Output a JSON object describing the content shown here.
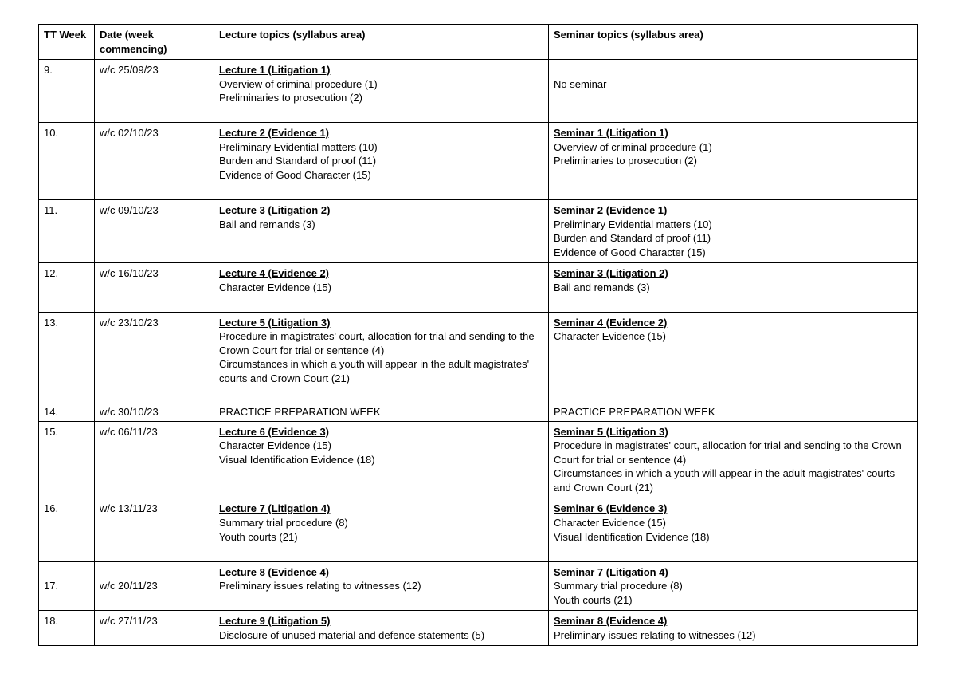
{
  "table": {
    "columns": [
      "TT Week",
      "Date (week commencing)",
      "Lecture topics (syllabus area)",
      "Seminar topics (syllabus area)"
    ],
    "rows": [
      {
        "week": "9.",
        "date": "w/c 25/09/23",
        "lecture_title": "Lecture 1 (Litigation 1)",
        "lecture_lines": [
          "Overview of criminal procedure (1)",
          "Preliminaries to prosecution (2)"
        ],
        "seminar_title": "",
        "seminar_lines": [
          "No seminar"
        ],
        "seminar_lead_blank": true,
        "tall": true
      },
      {
        "week": "10.",
        "date": "w/c 02/10/23",
        "lecture_title": "Lecture 2 (Evidence 1)",
        "lecture_lines": [
          "Preliminary Evidential matters (10)",
          "Burden and Standard of proof (11)",
          "Evidence of Good Character (15)"
        ],
        "seminar_title": "Seminar 1 (Litigation 1)",
        "seminar_lines": [
          "Overview of criminal procedure (1)",
          "Preliminaries to prosecution (2)"
        ],
        "tall": true
      },
      {
        "week": "11.",
        "date": "w/c 09/10/23",
        "lecture_title": "Lecture 3 (Litigation 2)",
        "lecture_lines": [
          "Bail and remands (3)"
        ],
        "seminar_title": "Seminar 2 (Evidence 1)",
        "seminar_lines": [
          "Preliminary Evidential matters (10)",
          "Burden and Standard of proof (11)",
          "Evidence of Good Character (15)"
        ],
        "tall": true
      },
      {
        "week": "12.",
        "date": "w/c 16/10/23",
        "lecture_title": "Lecture 4 (Evidence 2)",
        "lecture_lines": [
          "Character Evidence (15)"
        ],
        "seminar_title": "Seminar 3 (Litigation 2)",
        "seminar_lines": [
          "Bail and remands (3)"
        ],
        "tall": true
      },
      {
        "week": "13.",
        "date": "w/c  23/10/23",
        "lecture_title": "Lecture 5 (Litigation 3)",
        "lecture_lines": [
          "Procedure in magistrates' court, allocation for trial and sending to the Crown Court for trial or sentence (4)",
          "Circumstances in which a youth will appear in the adult magistrates' courts and Crown Court (21)"
        ],
        "seminar_title": "Seminar 4 (Evidence 2)",
        "seminar_lines": [
          "Character Evidence (15)"
        ],
        "tall": true
      },
      {
        "week": "14.",
        "date": "w/c 30/10/23",
        "lecture_title": "",
        "lecture_lines": [
          "PRACTICE PREPARATION WEEK"
        ],
        "seminar_title": "",
        "seminar_lines": [
          "PRACTICE PREPARATION WEEK"
        ],
        "short": true
      },
      {
        "week": "15.",
        "date": "w/c 06/11/23",
        "lecture_title": "Lecture 6 (Evidence 3)",
        "lecture_lines": [
          "Character Evidence (15)",
          "Visual Identification Evidence (18)"
        ],
        "seminar_title": "Seminar 5 (Litigation 3)",
        "seminar_lines": [
          "Procedure in magistrates' court, allocation for trial and sending to the Crown Court for trial or sentence (4)",
          "Circumstances in which a youth will appear in the adult magistrates' courts and Crown Court (21)"
        ],
        "tall": true
      },
      {
        "week": "16.",
        "date": "w/c  13/11/23",
        "lecture_title": "Lecture 7 (Litigation 4)",
        "lecture_lines": [
          "Summary trial procedure (8)",
          "Youth courts (21)"
        ],
        "seminar_title": "Seminar 6 (Evidence 3)",
        "seminar_lines": [
          "Character Evidence (15)",
          "Visual Identification Evidence (18)"
        ],
        "tall": true
      },
      {
        "week": "17.",
        "date": "w/c 20/11/23",
        "lecture_title": "Lecture 8 (Evidence 4)",
        "lecture_lines": [
          "Preliminary issues relating to witnesses (12)"
        ],
        "seminar_title": "Seminar 7 (Litigation 4)",
        "seminar_lines": [
          "Summary trial procedure (8)",
          "Youth courts (21)"
        ],
        "tall": true,
        "week_low": true
      },
      {
        "week": "18.",
        "date": "w/c 27/11/23",
        "lecture_title": "Lecture 9 (Litigation 5)",
        "lecture_lines": [
          "Disclosure of unused material and defence statements (5)"
        ],
        "seminar_title": "Seminar 8 (Evidence 4)",
        "seminar_lines": [
          "Preliminary issues relating to witnesses (12)"
        ]
      }
    ]
  },
  "style": {
    "font_family": "Arial",
    "font_size_pt": 10,
    "border_color": "#000000",
    "background_color": "#ffffff",
    "text_color": "#000000"
  }
}
